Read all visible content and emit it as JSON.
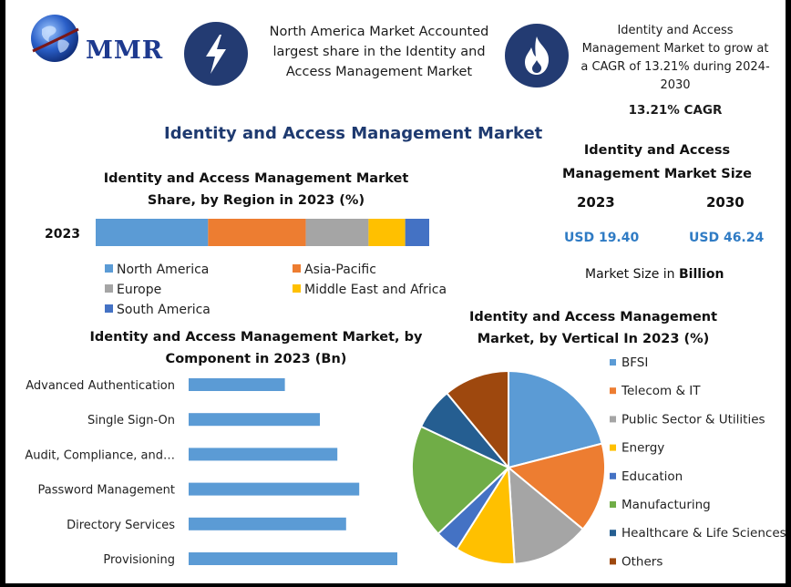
{
  "header": {
    "logo_text": "MMR",
    "icon_left": "lightning-icon",
    "icon_right": "flame-icon",
    "headline_left": "North America Market Accounted largest share in the Identity and Access Management Market",
    "headline_right": "Identity and Access Management Market to grow at a CAGR of 13.21% during 2024-2030",
    "cagr": "13.21% CAGR"
  },
  "main_title": "Identity and Access Management Market",
  "market_size": {
    "title": "Identity and Access Management Market Size",
    "year_a": "2023",
    "year_b": "2030",
    "value_a": "USD 19.40",
    "value_b": "USD 46.24",
    "unit_prefix": "Market Size in ",
    "unit_bold": "Billion"
  },
  "colors": {
    "navy": "#233b72",
    "title_blue": "#1e3a70",
    "value_blue": "#2f7bc4",
    "bar_blue": "#5b9bd5"
  },
  "chart_data": [
    {
      "type": "bar",
      "orientation": "horizontal-stacked",
      "title": "Identity and Access Management Market Share, by Region in 2023 (%)",
      "categories": [
        "2023"
      ],
      "series": [
        {
          "name": "North America",
          "values": [
            33.7
          ],
          "color": "#5b9bd5"
        },
        {
          "name": "Asia-Pacific",
          "values": [
            29.3
          ],
          "color": "#ed7d31"
        },
        {
          "name": "Europe",
          "values": [
            18.8
          ],
          "color": "#a5a5a5"
        },
        {
          "name": "Middle East and Africa",
          "values": [
            11.0
          ],
          "color": "#ffc000"
        },
        {
          "name": "South America",
          "values": [
            7.2
          ],
          "color": "#4472c4"
        }
      ],
      "xlim": [
        0,
        100
      ],
      "legend": "bottom"
    },
    {
      "type": "bar",
      "orientation": "horizontal",
      "title": "Identity and Access Management Market, by Component in 2023 (Bn)",
      "categories": [
        "Advanced Authentication",
        "Single Sign-On",
        "Audit, Compliance, and…",
        "Password Management",
        "Directory Services",
        "Provisioning"
      ],
      "values": [
        2.2,
        3.0,
        3.4,
        3.9,
        3.6,
        4.8
      ],
      "xlim": [
        0,
        5
      ],
      "color": "#5b9bd5",
      "grid": false
    },
    {
      "type": "pie",
      "title": "Identity and Access Management Market, by Vertical In 2023 (%)",
      "labels": [
        "BFSI",
        "Telecom & IT",
        "Public Sector & Utilities",
        "Energy",
        "Education",
        "Manufacturing",
        "Healthcare & Life Sciences",
        "Others"
      ],
      "values": [
        21,
        15,
        13,
        10,
        4,
        19,
        7,
        11
      ],
      "colors": [
        "#5b9bd5",
        "#ed7d31",
        "#a5a5a5",
        "#ffc000",
        "#4472c4",
        "#70ad47",
        "#255e91",
        "#9e480e"
      ],
      "legend": "right"
    }
  ]
}
